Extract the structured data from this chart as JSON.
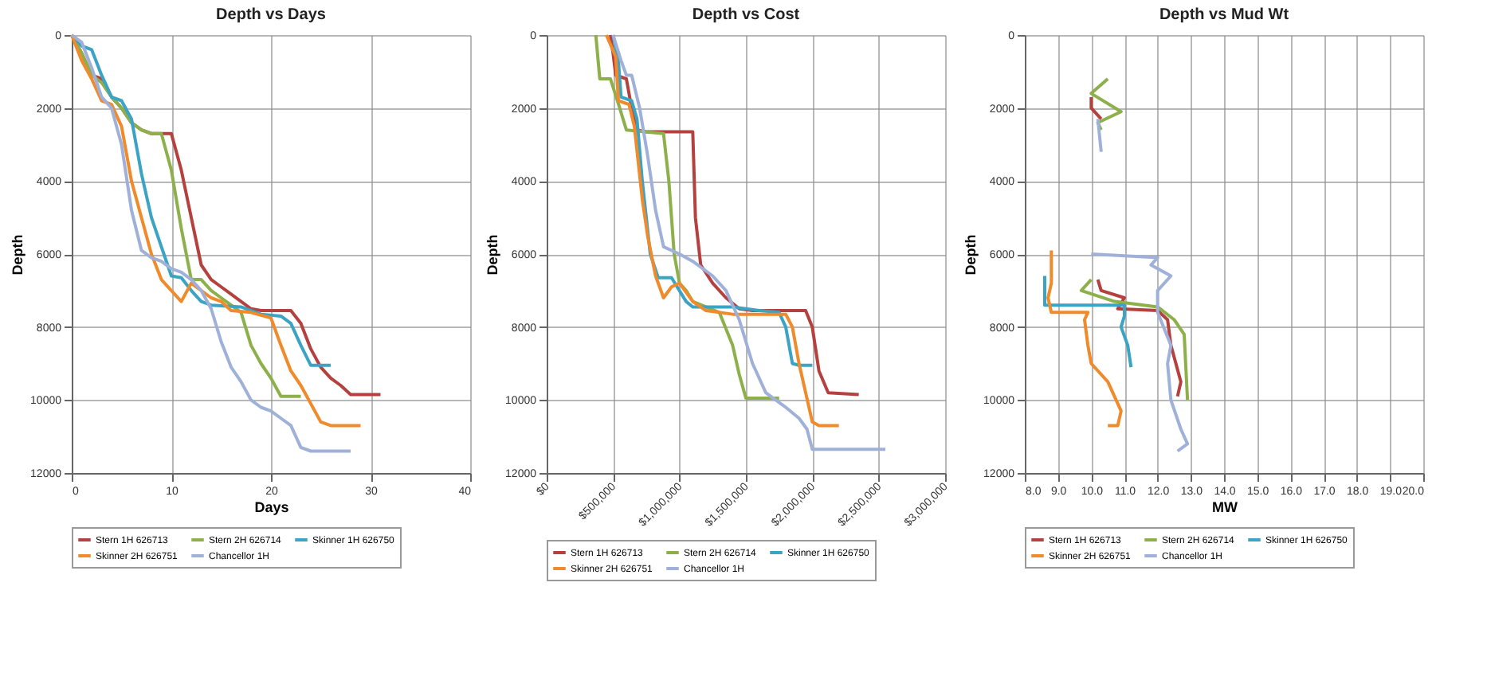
{
  "chart_data": [
    {
      "type": "line",
      "title": "Depth vs Days",
      "xlabel": "Days",
      "ylabel": "Depth",
      "xlim": [
        0,
        40
      ],
      "xticks": [
        0,
        10,
        20,
        30,
        40
      ],
      "ylim": [
        12000,
        0
      ],
      "yticks": [
        0,
        2000,
        4000,
        6000,
        8000,
        10000,
        12000
      ],
      "grid": true,
      "legend": "bottom",
      "series": [
        {
          "name": "Stern 1H 626713",
          "color": "#b5413f",
          "x": [
            0,
            1,
            2,
            3,
            4,
            5,
            6,
            7,
            8,
            10,
            11,
            12,
            13,
            14,
            15,
            16,
            17,
            18,
            19,
            22,
            23,
            24,
            25,
            26,
            27,
            28,
            31
          ],
          "values": [
            0,
            500,
            1100,
            1200,
            1700,
            2000,
            2400,
            2600,
            2700,
            2700,
            3700,
            5000,
            6300,
            6700,
            6900,
            7100,
            7300,
            7500,
            7550,
            7550,
            7900,
            8600,
            9100,
            9400,
            9600,
            9850,
            9850
          ]
        },
        {
          "name": "Stern 2H 626714",
          "color": "#8db04a",
          "x": [
            0,
            1,
            2,
            3,
            4,
            5,
            6,
            7,
            8,
            9,
            10,
            11,
            12,
            13,
            14,
            15,
            16,
            17,
            18,
            19,
            20,
            21,
            23
          ],
          "values": [
            0,
            500,
            1100,
            1300,
            1700,
            2000,
            2400,
            2600,
            2700,
            2700,
            3700,
            5300,
            6700,
            6700,
            7000,
            7200,
            7400,
            7600,
            8500,
            9000,
            9400,
            9900,
            9900
          ]
        },
        {
          "name": "Skinner 1H 626750",
          "color": "#3ba3c3",
          "x": [
            0,
            1,
            2,
            3,
            4,
            5,
            6,
            7,
            8,
            9,
            10,
            11,
            12,
            13,
            14,
            17,
            19,
            21,
            22,
            23,
            24,
            26
          ],
          "values": [
            0,
            300,
            400,
            1100,
            1700,
            1800,
            2300,
            3800,
            5000,
            5800,
            6600,
            6650,
            7000,
            7300,
            7400,
            7450,
            7650,
            7700,
            7900,
            8500,
            9050,
            9050
          ]
        },
        {
          "name": "Skinner 2H 626751",
          "color": "#f08a2b",
          "x": [
            0,
            1,
            2,
            3,
            4,
            5,
            6,
            7,
            8,
            9,
            10,
            11,
            12,
            13,
            14,
            15,
            16,
            18,
            20,
            21,
            22,
            23,
            24,
            25,
            26,
            29
          ],
          "values": [
            0,
            700,
            1200,
            1800,
            1900,
            2500,
            4000,
            5000,
            6000,
            6700,
            7000,
            7300,
            6800,
            7000,
            7200,
            7300,
            7550,
            7600,
            7750,
            8500,
            9200,
            9600,
            10100,
            10600,
            10700,
            10700
          ]
        },
        {
          "name": "Chancellor 1H",
          "color": "#9fb1d9",
          "x": [
            0,
            1,
            2,
            3,
            4,
            5,
            6,
            7,
            8,
            9,
            10,
            11,
            12,
            13,
            14,
            15,
            16,
            17,
            18,
            19,
            20,
            21,
            22,
            23,
            24,
            28
          ],
          "values": [
            0,
            200,
            900,
            1700,
            2000,
            3000,
            4800,
            5900,
            6100,
            6200,
            6400,
            6500,
            6700,
            7000,
            7500,
            8400,
            9100,
            9500,
            10000,
            10200,
            10300,
            10500,
            10700,
            11300,
            11400,
            11400
          ]
        }
      ]
    },
    {
      "type": "line",
      "title": "Depth vs Cost",
      "ylabel": "Depth",
      "xlim": [
        0,
        3000000
      ],
      "xticks": [
        {
          "value": 0,
          "label": "$0"
        },
        {
          "value": 500000,
          "label": "$500,000"
        },
        {
          "value": 1000000,
          "label": "$1,000,000"
        },
        {
          "value": 1500000,
          "label": "$1,500,000"
        },
        {
          "value": 2000000,
          "label": "$2,000,000"
        },
        {
          "value": 2500000,
          "label": "$2,500,000"
        },
        {
          "value": 3000000,
          "label": "$3,000,000"
        }
      ],
      "ylim": [
        12000,
        0
      ],
      "yticks": [
        0,
        2000,
        4000,
        6000,
        8000,
        10000,
        12000
      ],
      "grid": true,
      "legend": "bottom",
      "series": [
        {
          "name": "Stern 1H 626713",
          "color": "#b5413f",
          "x": [
            480000,
            500000,
            520000,
            600000,
            640000,
            680000,
            750000,
            1100000,
            1120000,
            1160000,
            1250000,
            1350000,
            1450000,
            1550000,
            1950000,
            2000000,
            2050000,
            2120000,
            2350000
          ],
          "values": [
            0,
            500,
            1100,
            1200,
            2000,
            2600,
            2650,
            2650,
            5000,
            6300,
            6800,
            7200,
            7500,
            7550,
            7550,
            8000,
            9200,
            9800,
            9850
          ]
        },
        {
          "name": "Stern 2H 626714",
          "color": "#8db04a",
          "x": [
            370000,
            400000,
            480000,
            550000,
            600000,
            880000,
            920000,
            960000,
            1000000,
            1050000,
            1100000,
            1300000,
            1400000,
            1450000,
            1500000,
            1750000
          ],
          "values": [
            0,
            1200,
            1200,
            2000,
            2600,
            2700,
            4000,
            6000,
            6800,
            7000,
            7300,
            7600,
            8500,
            9300,
            9950,
            9950
          ]
        },
        {
          "name": "Skinner 1H 626750",
          "color": "#3ba3c3",
          "x": [
            500000,
            540000,
            560000,
            640000,
            680000,
            720000,
            780000,
            840000,
            940000,
            1050000,
            1100000,
            1400000,
            1600000,
            1750000,
            1800000,
            1850000,
            1900000,
            2000000
          ],
          "values": [
            0,
            700,
            1700,
            1800,
            2300,
            4000,
            6000,
            6650,
            6650,
            7300,
            7450,
            7450,
            7550,
            7600,
            8000,
            9000,
            9050,
            9050
          ]
        },
        {
          "name": "Skinner 2H 626751",
          "color": "#f08a2b",
          "x": [
            450000,
            520000,
            540000,
            620000,
            660000,
            720000,
            760000,
            820000,
            880000,
            940000,
            1000000,
            1100000,
            1200000,
            1400000,
            1800000,
            1850000,
            1900000,
            1950000,
            2000000,
            2050000,
            2200000
          ],
          "values": [
            0,
            600,
            1800,
            1900,
            2500,
            4500,
            5500,
            6600,
            7200,
            6900,
            6800,
            7300,
            7550,
            7650,
            7650,
            8000,
            9000,
            9800,
            10600,
            10700,
            10700
          ]
        },
        {
          "name": "Chancellor 1H",
          "color": "#9fb1d9",
          "x": [
            500000,
            560000,
            600000,
            640000,
            700000,
            760000,
            820000,
            880000,
            1000000,
            1100000,
            1250000,
            1350000,
            1450000,
            1550000,
            1650000,
            1800000,
            1900000,
            1960000,
            2000000,
            2150000,
            2550000
          ],
          "values": [
            0,
            700,
            1100,
            1100,
            2000,
            3300,
            4800,
            5800,
            6000,
            6200,
            6600,
            7000,
            7800,
            9000,
            9800,
            10200,
            10500,
            10800,
            11350,
            11350,
            11350
          ]
        }
      ]
    },
    {
      "type": "line",
      "title": "Depth vs Mud Wt",
      "xlabel": "MW",
      "ylabel": "Depth",
      "xlim": [
        8,
        20
      ],
      "xticks": [
        {
          "value": 8,
          "label": "8.0"
        },
        {
          "value": 9,
          "label": "9.0"
        },
        {
          "value": 10,
          "label": "10.0"
        },
        {
          "value": 11,
          "label": "11.0"
        },
        {
          "value": 12,
          "label": "12.0"
        },
        {
          "value": 13,
          "label": "13.0"
        },
        {
          "value": 14,
          "label": "14.0"
        },
        {
          "value": 15,
          "label": "15.0"
        },
        {
          "value": 16,
          "label": "16.0"
        },
        {
          "value": 17,
          "label": "17.0"
        },
        {
          "value": 18,
          "label": "18.0"
        },
        {
          "value": 19,
          "label": "19.0"
        },
        {
          "value": 20,
          "label": "20.0"
        }
      ],
      "ylim": [
        12000,
        0
      ],
      "yticks": [
        0,
        2000,
        4000,
        6000,
        8000,
        10000,
        12000
      ],
      "grid": true,
      "legend": "bottom",
      "series": [
        {
          "name": "Stern 1H 626713",
          "color": "#b5413f",
          "x": [
            10.0,
            10.0,
            10.3,
            null,
            10.2,
            10.3,
            11.0,
            10.8,
            12.0,
            12.3,
            12.4,
            12.7,
            12.6
          ],
          "values": [
            1700,
            2000,
            2300,
            null,
            6700,
            7000,
            7200,
            7500,
            7550,
            7800,
            8500,
            9500,
            9900
          ]
        },
        {
          "name": "Stern 2H 626714",
          "color": "#8db04a",
          "x": [
            10.5,
            10.0,
            10.9,
            10.2,
            10.3,
            null,
            10.0,
            9.7,
            10.7,
            12.0,
            12.5,
            12.8,
            12.9
          ],
          "values": [
            1200,
            1600,
            2100,
            2400,
            2600,
            null,
            6700,
            7000,
            7300,
            7450,
            7800,
            8200,
            10000
          ]
        },
        {
          "name": "Skinner 1H 626750",
          "color": "#3ba3c3",
          "x": [
            8.6,
            8.6,
            11.0,
            11.0,
            10.9,
            11.1,
            11.2
          ],
          "values": [
            6600,
            7400,
            7400,
            7700,
            8000,
            8500,
            9100
          ]
        },
        {
          "name": "Skinner 2H 626751",
          "color": "#f08a2b",
          "x": [
            8.8,
            8.8,
            8.7,
            8.8,
            9.9,
            9.8,
            9.9,
            10.0,
            10.5,
            10.9,
            10.8,
            10.5
          ],
          "values": [
            5900,
            6800,
            7200,
            7600,
            7600,
            7800,
            8500,
            9000,
            9500,
            10300,
            10700,
            10700
          ]
        },
        {
          "name": "Chancellor 1H",
          "color": "#9fb1d9",
          "x": [
            10.2,
            10.3,
            null,
            10.0,
            12.0,
            11.8,
            12.4,
            12.0,
            12.0,
            12.4,
            12.3,
            12.4,
            12.7,
            12.9,
            12.6
          ],
          "values": [
            2300,
            3200,
            null,
            6000,
            6100,
            6300,
            6600,
            7000,
            7600,
            8500,
            9000,
            10000,
            10800,
            11200,
            11400
          ]
        }
      ]
    }
  ]
}
